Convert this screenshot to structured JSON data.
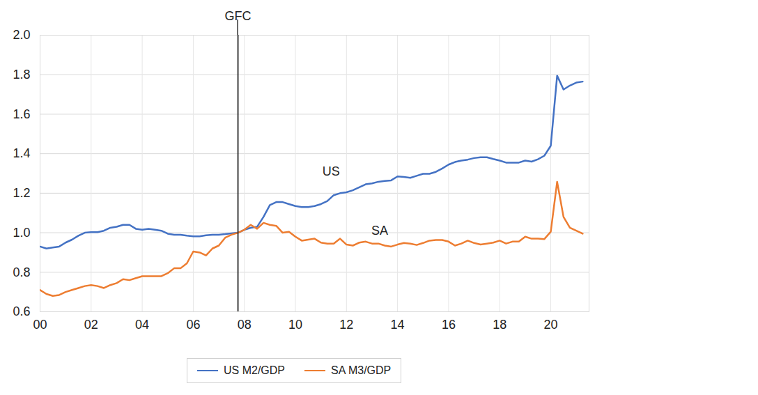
{
  "chart_data": {
    "type": "line",
    "x": [
      2000,
      2000.25,
      2000.5,
      2000.75,
      2001,
      2001.25,
      2001.5,
      2001.75,
      2002,
      2002.25,
      2002.5,
      2002.75,
      2003,
      2003.25,
      2003.5,
      2003.75,
      2004,
      2004.25,
      2004.5,
      2004.75,
      2005,
      2005.25,
      2005.5,
      2005.75,
      2006,
      2006.25,
      2006.5,
      2006.75,
      2007,
      2007.25,
      2007.5,
      2007.75,
      2008,
      2008.25,
      2008.5,
      2008.75,
      2009,
      2009.25,
      2009.5,
      2009.75,
      2010,
      2010.25,
      2010.5,
      2010.75,
      2011,
      2011.25,
      2011.5,
      2011.75,
      2012,
      2012.25,
      2012.5,
      2012.75,
      2013,
      2013.25,
      2013.5,
      2013.75,
      2014,
      2014.25,
      2014.5,
      2014.75,
      2015,
      2015.25,
      2015.5,
      2015.75,
      2016,
      2016.25,
      2016.5,
      2016.75,
      2017,
      2017.25,
      2017.5,
      2017.75,
      2018,
      2018.25,
      2018.5,
      2018.75,
      2019,
      2019.25,
      2019.5,
      2019.75,
      2020,
      2020.25,
      2020.5,
      2020.75,
      2021,
      2021.25
    ],
    "series": [
      {
        "name": "US M2/GDP",
        "color": "#4472c4",
        "values": [
          0.93,
          0.92,
          0.925,
          0.93,
          0.95,
          0.965,
          0.985,
          1.0,
          1.003,
          1.003,
          1.01,
          1.025,
          1.03,
          1.04,
          1.04,
          1.02,
          1.015,
          1.02,
          1.015,
          1.01,
          0.995,
          0.99,
          0.99,
          0.985,
          0.982,
          0.982,
          0.987,
          0.99,
          0.99,
          0.993,
          0.997,
          1.0,
          1.015,
          1.025,
          1.03,
          1.08,
          1.14,
          1.155,
          1.155,
          1.145,
          1.135,
          1.13,
          1.13,
          1.135,
          1.145,
          1.16,
          1.19,
          1.2,
          1.205,
          1.215,
          1.23,
          1.245,
          1.25,
          1.258,
          1.262,
          1.265,
          1.285,
          1.282,
          1.278,
          1.288,
          1.298,
          1.298,
          1.308,
          1.325,
          1.345,
          1.358,
          1.365,
          1.37,
          1.378,
          1.382,
          1.382,
          1.373,
          1.365,
          1.355,
          1.355,
          1.355,
          1.365,
          1.36,
          1.372,
          1.39,
          1.44,
          1.795,
          1.725,
          1.745,
          1.76,
          1.765
        ]
      },
      {
        "name": "SA M3/GDP",
        "color": "#ed7d31",
        "values": [
          0.71,
          0.69,
          0.68,
          0.685,
          0.7,
          0.71,
          0.72,
          0.73,
          0.735,
          0.73,
          0.72,
          0.735,
          0.745,
          0.765,
          0.76,
          0.77,
          0.78,
          0.78,
          0.78,
          0.78,
          0.795,
          0.82,
          0.82,
          0.845,
          0.905,
          0.9,
          0.885,
          0.92,
          0.935,
          0.975,
          0.99,
          1.0,
          1.015,
          1.04,
          1.02,
          1.05,
          1.04,
          1.035,
          1.0,
          1.005,
          0.98,
          0.96,
          0.965,
          0.97,
          0.95,
          0.945,
          0.945,
          0.97,
          0.94,
          0.935,
          0.95,
          0.955,
          0.945,
          0.945,
          0.935,
          0.93,
          0.94,
          0.948,
          0.945,
          0.938,
          0.948,
          0.96,
          0.963,
          0.963,
          0.955,
          0.935,
          0.945,
          0.96,
          0.948,
          0.94,
          0.945,
          0.95,
          0.96,
          0.945,
          0.955,
          0.955,
          0.98,
          0.97,
          0.97,
          0.968,
          1.005,
          1.258,
          1.08,
          1.025,
          1.01,
          0.995
        ]
      }
    ],
    "xlim": [
      2000,
      2021.5
    ],
    "xticks": [
      {
        "value": 2000,
        "label": "00"
      },
      {
        "value": 2002,
        "label": "02"
      },
      {
        "value": 2004,
        "label": "04"
      },
      {
        "value": 2006,
        "label": "06"
      },
      {
        "value": 2008,
        "label": "08"
      },
      {
        "value": 2010,
        "label": "10"
      },
      {
        "value": 2012,
        "label": "12"
      },
      {
        "value": 2014,
        "label": "14"
      },
      {
        "value": 2016,
        "label": "16"
      },
      {
        "value": 2018,
        "label": "18"
      },
      {
        "value": 2020,
        "label": "20"
      }
    ],
    "ylim": [
      0.6,
      2.0
    ],
    "yticks": [
      0.6,
      0.8,
      {
        "value": 1,
        "label": "1.0"
      },
      1.2,
      1.4,
      1.6,
      1.8,
      {
        "value": 2,
        "label": "2.0"
      }
    ],
    "grid": true,
    "legend": "bottom",
    "annotations": [
      {
        "type": "vline",
        "x": 2007.75,
        "label": "GFC"
      },
      {
        "type": "text",
        "x": 2011.4,
        "y": 1.31,
        "label": "US"
      },
      {
        "type": "text",
        "x": 2013.3,
        "y": 1.01,
        "label": "SA"
      }
    ]
  }
}
